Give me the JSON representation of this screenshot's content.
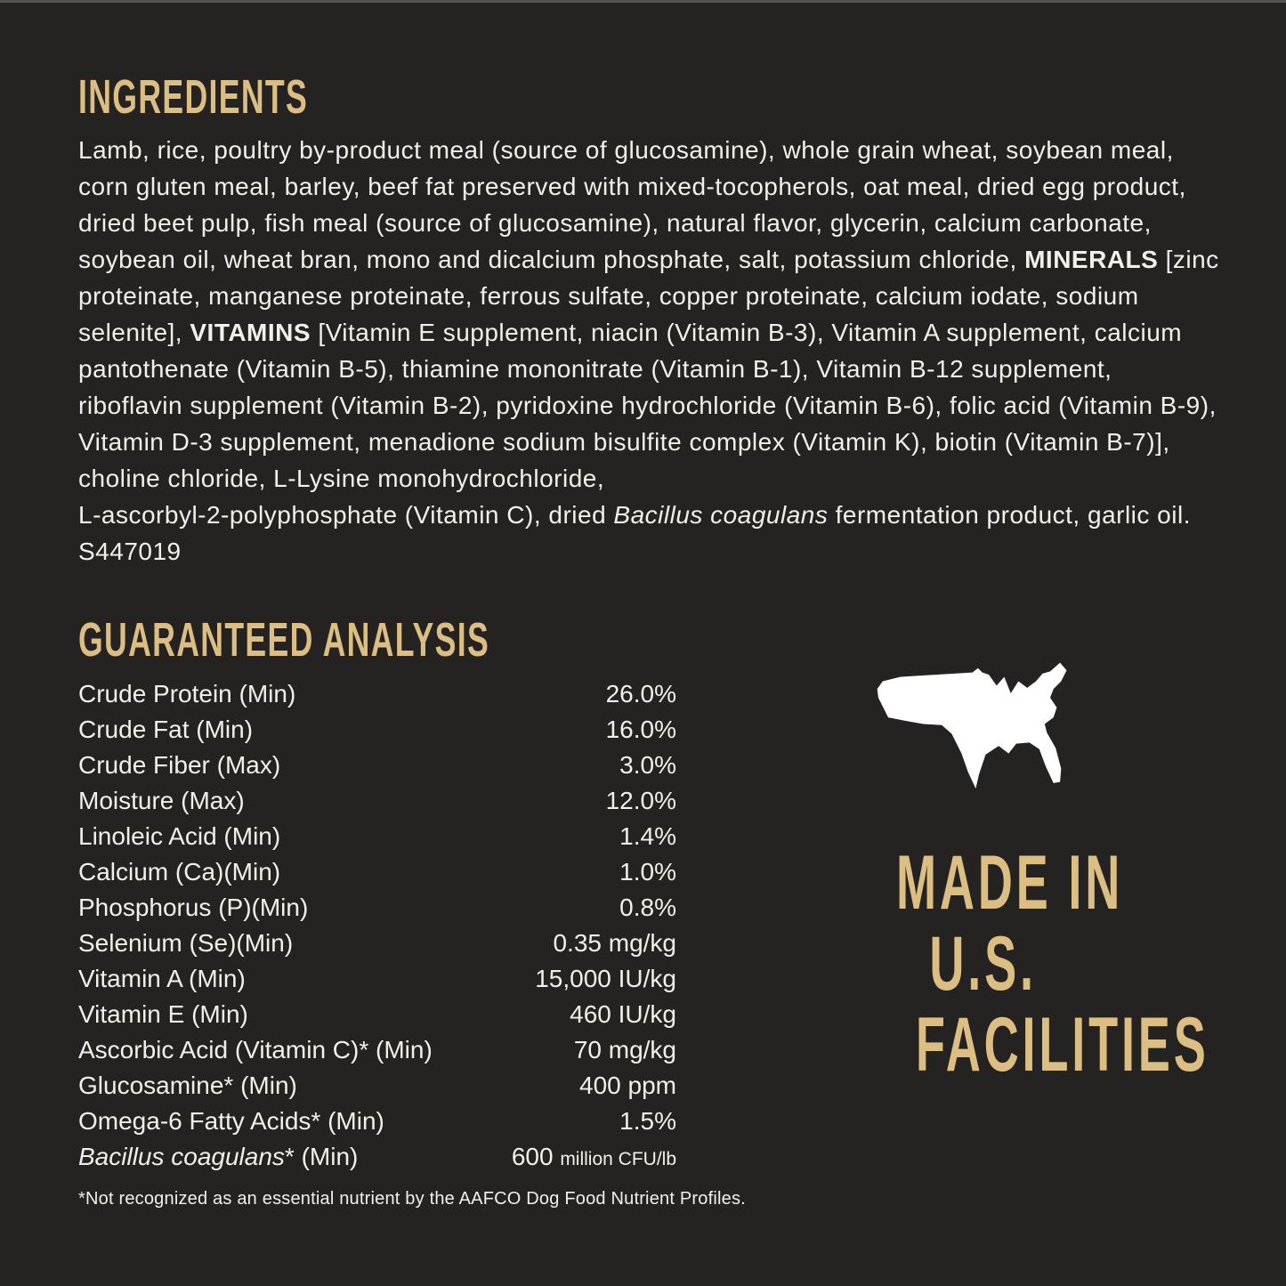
{
  "colors": {
    "background": "#242321",
    "accent_gold": "#DDBE82",
    "body_text": "#F2F0EC",
    "map_white": "#FFFFFF"
  },
  "ingredients": {
    "heading": "INGREDIENTS",
    "segments": [
      {
        "text": "Lamb, rice, poultry by-product meal (source of glucosamine), whole grain wheat, soybean meal, corn gluten meal, barley, beef fat preserved with mixed-tocopherols, oat meal, dried egg product, dried beet pulp, fish meal (source of glucosamine), natural flavor, glycerin, calcium carbonate, soybean oil, wheat bran, mono and dicalcium phosphate, salt, potassium chloride, "
      },
      {
        "text": "MINERALS",
        "bold": true
      },
      {
        "text": " [zinc proteinate, manganese proteinate, ferrous sulfate, copper proteinate, calcium iodate, sodium selenite], "
      },
      {
        "text": "VITAMINS",
        "bold": true
      },
      {
        "text": " [Vitamin E supplement, niacin (Vitamin B-3), Vitamin A supplement, calcium pantothenate (Vitamin B-5), thiamine mononitrate (Vitamin B-1), Vitamin B-12 supplement, riboflavin supplement (Vitamin B-2), pyridoxine hydrochloride (Vitamin B-6), folic acid (Vitamin B-9), Vitamin D-3 supplement, menadione sodium bisulfite complex (Vitamin K), biotin (Vitamin B-7)], choline chloride, L-Lysine monohydrochloride,\n"
      },
      {
        "text": "L-ascorbyl-2-polyphosphate (Vitamin C), dried "
      },
      {
        "text": "Bacillus coagulans",
        "italic": true
      },
      {
        "text": " fermentation product, garlic oil. S447019"
      }
    ]
  },
  "analysis": {
    "heading": "GUARANTEED ANALYSIS",
    "rows": [
      {
        "label": [
          {
            "text": "Crude Protein (Min)"
          }
        ],
        "value": [
          {
            "text": "26.0%"
          }
        ]
      },
      {
        "label": [
          {
            "text": "Crude Fat (Min)"
          }
        ],
        "value": [
          {
            "text": "16.0%"
          }
        ]
      },
      {
        "label": [
          {
            "text": "Crude Fiber (Max)"
          }
        ],
        "value": [
          {
            "text": "3.0%"
          }
        ]
      },
      {
        "label": [
          {
            "text": "Moisture (Max)"
          }
        ],
        "value": [
          {
            "text": "12.0%"
          }
        ]
      },
      {
        "label": [
          {
            "text": "Linoleic Acid (Min)"
          }
        ],
        "value": [
          {
            "text": "1.4%"
          }
        ]
      },
      {
        "label": [
          {
            "text": "Calcium (Ca)(Min)"
          }
        ],
        "value": [
          {
            "text": "1.0%"
          }
        ]
      },
      {
        "label": [
          {
            "text": "Phosphorus (P)(Min)"
          }
        ],
        "value": [
          {
            "text": "0.8%"
          }
        ]
      },
      {
        "label": [
          {
            "text": "Selenium (Se)(Min)"
          }
        ],
        "value": [
          {
            "text": "0.35 mg/kg"
          }
        ]
      },
      {
        "label": [
          {
            "text": "Vitamin A (Min)"
          }
        ],
        "value": [
          {
            "text": "15,000 IU/kg"
          }
        ]
      },
      {
        "label": [
          {
            "text": "Vitamin E (Min)"
          }
        ],
        "value": [
          {
            "text": "460 IU/kg"
          }
        ]
      },
      {
        "label": [
          {
            "text": "Ascorbic Acid (Vitamin C)* (Min)"
          }
        ],
        "value": [
          {
            "text": "70 mg/kg"
          }
        ]
      },
      {
        "label": [
          {
            "text": "Glucosamine* (Min)"
          }
        ],
        "value": [
          {
            "text": "400 ppm"
          }
        ]
      },
      {
        "label": [
          {
            "text": "Omega-6 Fatty Acids* (Min)"
          }
        ],
        "value": [
          {
            "text": "1.5%"
          }
        ]
      },
      {
        "label": [
          {
            "text": "Bacillus coagulans",
            "italic": true
          },
          {
            "text": "* (Min)"
          }
        ],
        "value": [
          {
            "text": "600 "
          },
          {
            "text": "million CFU/lb",
            "small": true
          }
        ]
      }
    ],
    "footnote": "*Not recognized as an essential nutrient by the AAFCO Dog Food Nutrient Profiles."
  },
  "made_in": {
    "map_icon": "usa-map-icon",
    "lines": [
      "MADE IN",
      "U.S.",
      "FACILITIES"
    ]
  }
}
